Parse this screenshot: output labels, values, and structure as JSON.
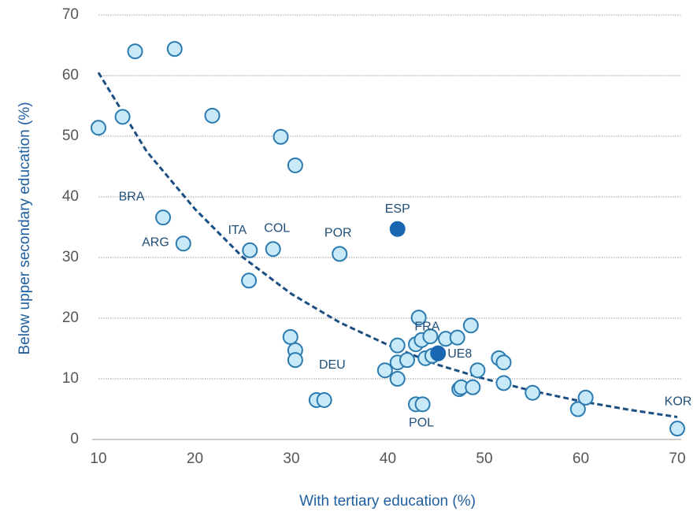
{
  "chart_data": {
    "type": "scatter",
    "xlabel": "With tertiary education (%)",
    "ylabel": "Below upper secondary education (%)",
    "xlim": [
      10,
      70
    ],
    "xticks": [
      10,
      20,
      30,
      40,
      50,
      60,
      70
    ],
    "ylim": [
      0,
      70
    ],
    "yticks": [
      0,
      10,
      20,
      30,
      40,
      50,
      60,
      70
    ],
    "grid": true,
    "series": [
      {
        "color": "#c8e9f8",
        "edge": "#2b7bb0",
        "x": [
          10.0,
          12.5,
          13.8,
          17.9,
          21.8,
          16.7,
          18.8,
          25.7,
          25.6,
          28.1,
          28.9,
          30.4,
          29.9,
          30.4,
          30.4,
          32.6,
          33.4,
          35.0,
          39.7,
          41.0,
          41.0,
          41.0,
          42.0,
          42.9,
          43.2,
          43.5,
          43.9,
          44.4,
          44.6,
          42.9,
          43.6,
          46.0,
          47.2,
          48.6,
          47.4,
          47.6,
          48.8,
          49.3,
          51.5,
          52.0,
          52.0,
          55.0,
          59.7,
          60.5,
          70.0
        ],
        "values": [
          51.4,
          53.2,
          64.0,
          64.4,
          53.4,
          36.6,
          32.3,
          31.2,
          26.2,
          31.4,
          49.9,
          45.2,
          16.9,
          14.7,
          13.1,
          6.5,
          6.5,
          30.6,
          11.4,
          15.5,
          12.7,
          10.0,
          13.1,
          15.7,
          20.1,
          16.4,
          13.4,
          17.0,
          13.8,
          5.8,
          5.8,
          16.6,
          16.8,
          18.8,
          8.3,
          8.6,
          8.6,
          11.4,
          13.4,
          12.7,
          9.3,
          7.7,
          5.0,
          6.9,
          1.8
        ],
        "labels": [
          null,
          null,
          null,
          null,
          null,
          "BRA",
          "ARG",
          "ITA",
          null,
          "COL",
          null,
          null,
          null,
          null,
          null,
          "DEU",
          null,
          "POR",
          null,
          null,
          null,
          null,
          null,
          null,
          null,
          null,
          null,
          "FRA",
          null,
          "POL",
          null,
          null,
          null,
          null,
          null,
          null,
          null,
          null,
          null,
          null,
          null,
          null,
          null,
          null,
          "KOR"
        ]
      },
      {
        "color": "#1a67b1",
        "edge": "#1a67b1",
        "x": [
          41.0,
          45.2
        ],
        "values": [
          34.7,
          14.2
        ],
        "labels": [
          "ESP",
          "UE8"
        ]
      }
    ],
    "trend": {
      "color": "#1b4f82",
      "x": [
        10,
        15,
        20,
        25,
        30,
        35,
        40,
        45,
        50,
        55,
        60,
        65,
        70
      ],
      "values": [
        60.5,
        47.5,
        38.0,
        30.0,
        24.0,
        19.3,
        15.6,
        12.4,
        10.0,
        8.0,
        6.3,
        4.9,
        3.7
      ]
    }
  }
}
